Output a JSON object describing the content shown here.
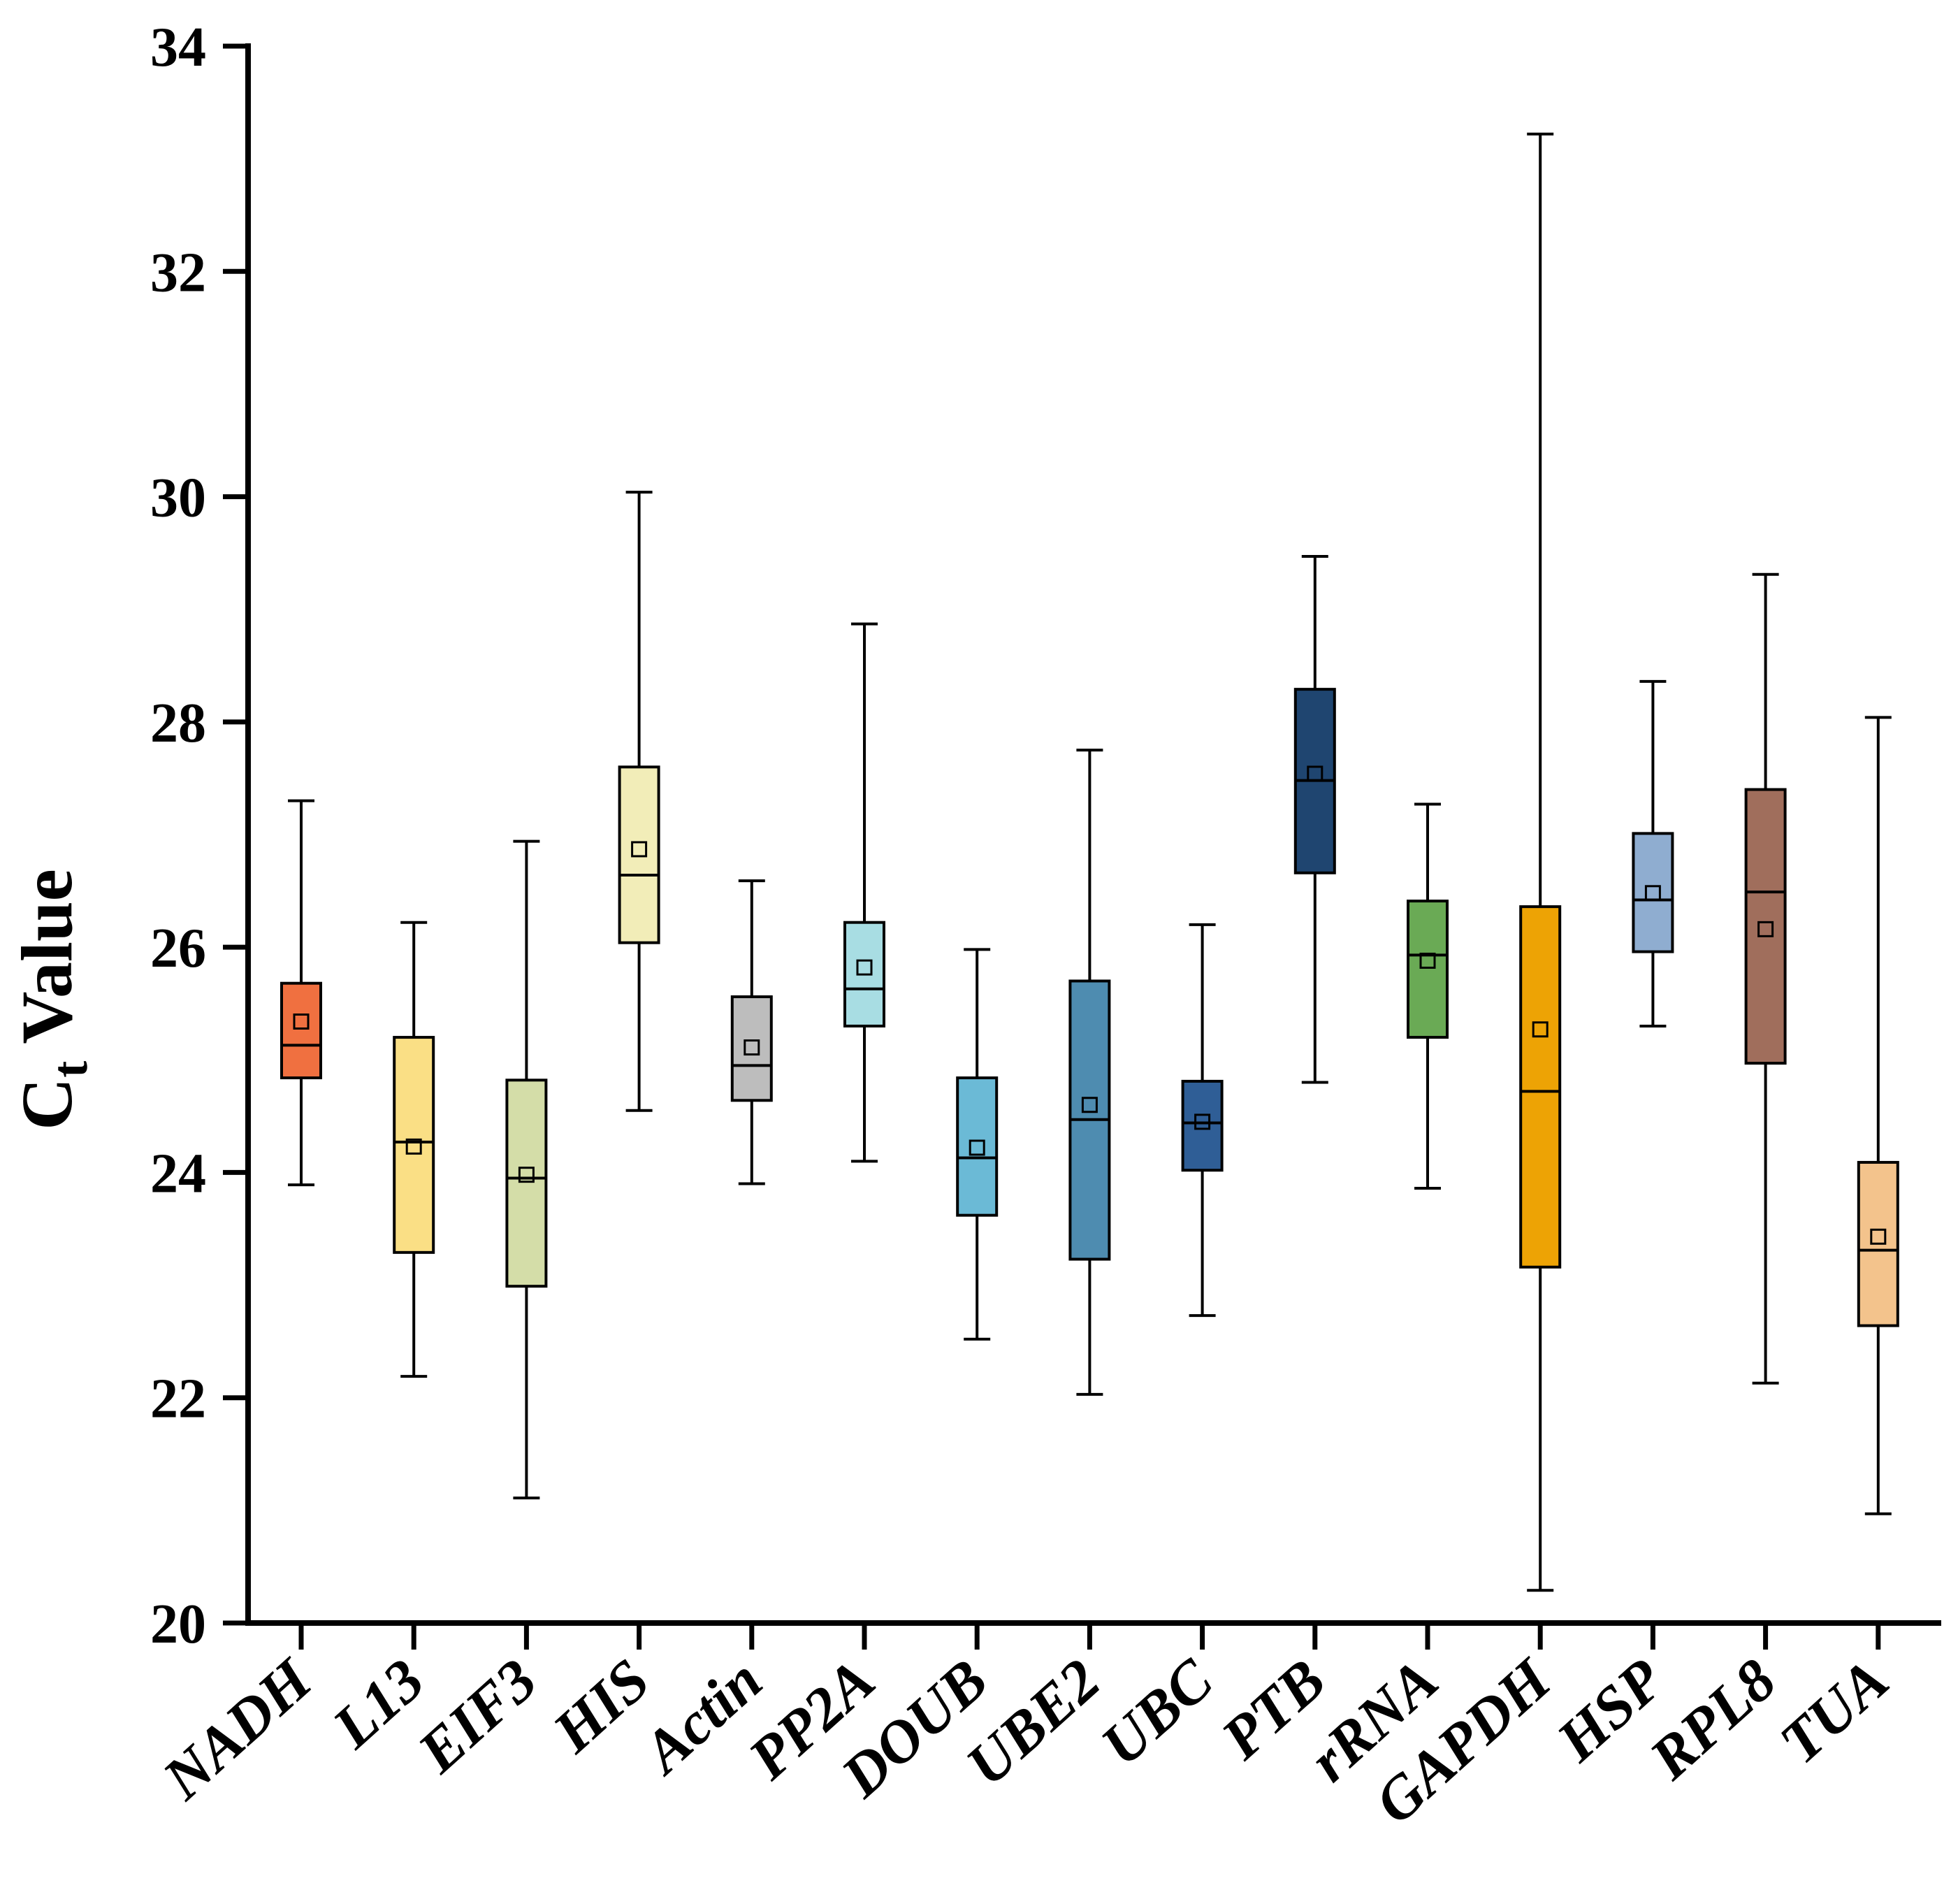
{
  "chart_data": {
    "type": "box",
    "title": "",
    "xlabel": "",
    "ylabel": {
      "main": "C",
      "subscript": "t",
      "rest": " Value"
    },
    "ylim": [
      20,
      34
    ],
    "yticks": [
      20,
      22,
      24,
      26,
      28,
      30,
      32,
      34
    ],
    "grid": false,
    "legend": "none",
    "categories": [
      "NADH",
      "L13",
      "EIF3",
      "HIS",
      "Actin",
      "PP2A",
      "DOUB",
      "UBE2",
      "UBC",
      "PTB",
      "rRNA",
      "GAPDH",
      "HSP",
      "RPL8",
      "TUA"
    ],
    "boxes": [
      {
        "name": "NADH",
        "whisker_low": 23.89,
        "q1": 24.84,
        "median": 25.13,
        "q3": 25.68,
        "whisker_high": 27.3,
        "mean": 25.34,
        "color": "#F07040"
      },
      {
        "name": "L13",
        "whisker_low": 22.19,
        "q1": 23.29,
        "median": 24.27,
        "q3": 25.2,
        "whisker_high": 26.22,
        "mean": 24.23,
        "color": "#FADF85"
      },
      {
        "name": "EIF3",
        "whisker_low": 21.11,
        "q1": 22.99,
        "median": 23.95,
        "q3": 24.82,
        "whisker_high": 26.94,
        "mean": 23.98,
        "color": "#D4DDA8"
      },
      {
        "name": "HIS",
        "whisker_low": 24.55,
        "q1": 26.04,
        "median": 26.64,
        "q3": 27.6,
        "whisker_high": 30.04,
        "mean": 26.87,
        "color": "#F2EDB8"
      },
      {
        "name": "Actin",
        "whisker_low": 23.9,
        "q1": 24.64,
        "median": 24.95,
        "q3": 25.56,
        "whisker_high": 26.59,
        "mean": 25.11,
        "color": "#BDBDBD"
      },
      {
        "name": "PP2A",
        "whisker_low": 24.1,
        "q1": 25.3,
        "median": 25.63,
        "q3": 26.22,
        "whisker_high": 28.87,
        "mean": 25.82,
        "color": "#A8DDE3"
      },
      {
        "name": "DOUB",
        "whisker_low": 22.52,
        "q1": 23.62,
        "median": 24.13,
        "q3": 24.84,
        "whisker_high": 25.98,
        "mean": 24.22,
        "color": "#6BBAD6"
      },
      {
        "name": "UBE2",
        "whisker_low": 22.03,
        "q1": 23.23,
        "median": 24.47,
        "q3": 25.7,
        "whisker_high": 27.75,
        "mean": 24.6,
        "color": "#4E8CB0"
      },
      {
        "name": "UBC",
        "whisker_low": 22.73,
        "q1": 24.02,
        "median": 24.44,
        "q3": 24.81,
        "whisker_high": 26.2,
        "mean": 24.45,
        "color": "#2F5E96"
      },
      {
        "name": "PTB",
        "whisker_low": 24.8,
        "q1": 26.66,
        "median": 27.48,
        "q3": 28.29,
        "whisker_high": 29.47,
        "mean": 27.54,
        "color": "#1F4570"
      },
      {
        "name": "rRNA",
        "whisker_low": 23.86,
        "q1": 25.2,
        "median": 25.93,
        "q3": 26.41,
        "whisker_high": 27.27,
        "mean": 25.88,
        "color": "#6AAA55"
      },
      {
        "name": "GAPDH",
        "whisker_low": 20.29,
        "q1": 23.16,
        "median": 24.72,
        "q3": 26.36,
        "whisker_high": 33.22,
        "mean": 25.27,
        "color": "#EDA305"
      },
      {
        "name": "HSP",
        "whisker_low": 25.3,
        "q1": 25.96,
        "median": 26.42,
        "q3": 27.01,
        "whisker_high": 28.36,
        "mean": 26.48,
        "color": "#8FADD0"
      },
      {
        "name": "RPL8",
        "whisker_low": 22.13,
        "q1": 24.97,
        "median": 26.49,
        "q3": 27.4,
        "whisker_high": 29.31,
        "mean": 26.16,
        "color": "#A06E5C"
      },
      {
        "name": "TUA",
        "whisker_low": 20.97,
        "q1": 22.64,
        "median": 23.31,
        "q3": 24.09,
        "whisker_high": 28.04,
        "mean": 23.43,
        "color": "#F3C38C"
      }
    ]
  }
}
